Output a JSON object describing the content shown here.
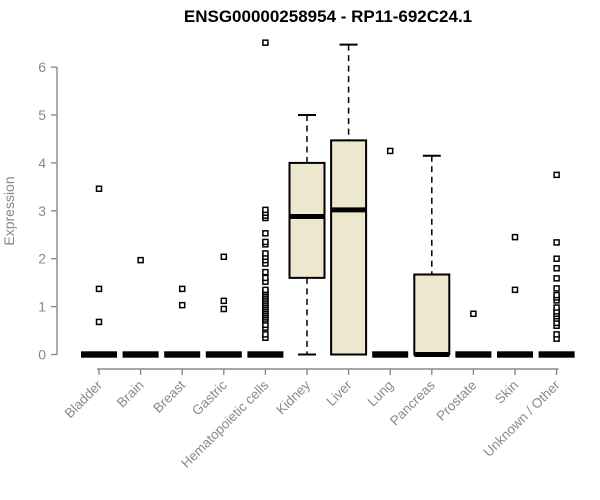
{
  "chart_data": {
    "type": "boxplot",
    "title": "ENSG00000258954 - RP11-692C24.1",
    "xlabel": "",
    "ylabel": "Expression",
    "ylim": [
      0,
      6.6
    ],
    "yticks": [
      0,
      1,
      2,
      3,
      4,
      5,
      6
    ],
    "grid": false,
    "legend": "none",
    "axis_color": "#8a8a8a",
    "box_fill": "#EDE8CD",
    "box_line_color": "#000000",
    "categories": [
      "Bladder",
      "Brain",
      "Breast",
      "Gastric",
      "Hematopoietic cells",
      "Kidney",
      "Liver",
      "Lung",
      "Pancreas",
      "Prostate",
      "Skin",
      "Unknown / Other"
    ],
    "boxes": [
      {
        "label": "Bladder",
        "q1": 0,
        "median": 0,
        "q3": 0,
        "whisker_low": 0,
        "whisker_high": 0,
        "outliers": [
          0.68,
          1.37,
          3.46
        ]
      },
      {
        "label": "Brain",
        "q1": 0,
        "median": 0,
        "q3": 0,
        "whisker_low": 0,
        "whisker_high": 0,
        "outliers": [
          1.97
        ]
      },
      {
        "label": "Breast",
        "q1": 0,
        "median": 0,
        "q3": 0,
        "whisker_low": 0,
        "whisker_high": 0,
        "outliers": [
          1.03,
          1.37
        ]
      },
      {
        "label": "Gastric",
        "q1": 0,
        "median": 0,
        "q3": 0,
        "whisker_low": 0,
        "whisker_high": 0,
        "outliers": [
          0.95,
          1.12,
          2.04
        ]
      },
      {
        "label": "Hematopoietic cells",
        "q1": 0,
        "median": 0,
        "q3": 0,
        "whisker_low": 0,
        "whisker_high": 0,
        "outliers": [
          0.35,
          0.42,
          0.56,
          0.62,
          0.71,
          0.75,
          0.79,
          0.83,
          0.87,
          0.91,
          0.95,
          0.99,
          1.03,
          1.07,
          1.11,
          1.15,
          1.19,
          1.23,
          1.27,
          1.31,
          1.35,
          1.52,
          1.6,
          1.72,
          1.9,
          1.97,
          2.04,
          2.11,
          2.3,
          2.35,
          2.53,
          2.85,
          2.9,
          2.96,
          3.02,
          6.51
        ]
      },
      {
        "label": "Kidney",
        "q1": 1.6,
        "median": 2.88,
        "q3": 4.0,
        "whisker_low": 0,
        "whisker_high": 5.0,
        "outliers": []
      },
      {
        "label": "Liver",
        "q1": 0,
        "median": 3.02,
        "q3": 4.47,
        "whisker_low": 0,
        "whisker_high": 6.47,
        "outliers": []
      },
      {
        "label": "Lung",
        "q1": 0,
        "median": 0,
        "q3": 0,
        "whisker_low": 0,
        "whisker_high": 0,
        "outliers": [
          4.25
        ]
      },
      {
        "label": "Pancreas",
        "q1": 0,
        "median": 0,
        "q3": 1.67,
        "whisker_low": 0,
        "whisker_high": 4.15,
        "outliers": []
      },
      {
        "label": "Prostate",
        "q1": 0,
        "median": 0,
        "q3": 0,
        "whisker_low": 0,
        "whisker_high": 0,
        "outliers": [
          0.85
        ]
      },
      {
        "label": "Skin",
        "q1": 0,
        "median": 0,
        "q3": 0,
        "whisker_low": 0,
        "whisker_high": 0,
        "outliers": [
          1.35,
          2.45
        ]
      },
      {
        "label": "Unknown / Other",
        "q1": 0,
        "median": 0,
        "q3": 0,
        "whisker_low": 0,
        "whisker_high": 0,
        "outliers": [
          0.33,
          0.42,
          0.6,
          0.66,
          0.75,
          0.8,
          0.85,
          0.9,
          0.98,
          1.13,
          1.19,
          1.24,
          1.38,
          1.59,
          1.8,
          2.0,
          2.34,
          3.75
        ]
      }
    ]
  }
}
